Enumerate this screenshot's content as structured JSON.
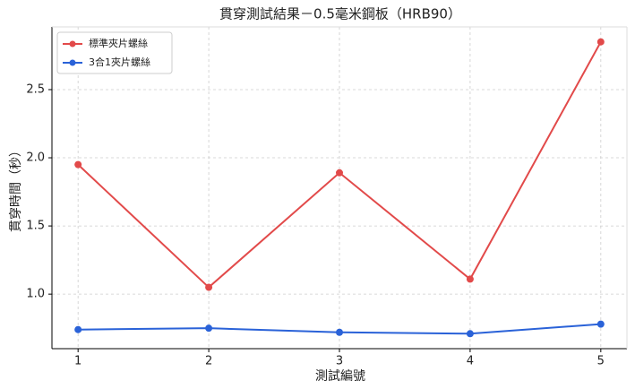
{
  "chart_data": {
    "type": "line",
    "title": "貫穿測試結果－0.5毫米鋼板（HRB90）",
    "x_label": "測試編號",
    "y_label": "貫穿時間（秒）",
    "x": [
      1,
      2,
      3,
      4,
      5
    ],
    "series": [
      {
        "name": "標準夾片螺絲",
        "color": "#e24a4a",
        "values": [
          1.95,
          1.05,
          1.89,
          1.11,
          2.85
        ]
      },
      {
        "name": "3合1夾片螺絲",
        "color": "#2a62d8",
        "values": [
          0.74,
          0.75,
          0.72,
          0.71,
          0.78
        ]
      }
    ],
    "xlim": [
      0.8,
      5.2
    ],
    "xticks": [
      1,
      2,
      3,
      4,
      5
    ],
    "ylim": [
      0.6,
      2.96
    ],
    "yticks": [
      {
        "value": 1.0,
        "label": "1.0"
      },
      {
        "value": 1.5,
        "label": "1.5"
      },
      {
        "value": 2.0,
        "label": "2.0"
      },
      {
        "value": 2.5,
        "label": "2.5"
      }
    ],
    "grid": true,
    "legend": "upper-left"
  }
}
